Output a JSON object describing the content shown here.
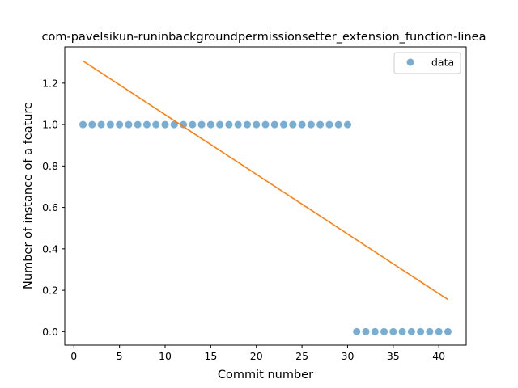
{
  "chart_data": {
    "type": "scatter",
    "title": "com-pavelsikun-runinbackgroundpermissionsetter_extension_function-linea",
    "xlabel": "Commit number",
    "ylabel": "Number of instance of a feature",
    "xlim": [
      -1,
      43
    ],
    "ylim": [
      -0.065,
      1.375
    ],
    "xticks": [
      0,
      5,
      10,
      15,
      20,
      25,
      30,
      35,
      40
    ],
    "yticks": [
      0.0,
      0.2,
      0.4,
      0.6,
      0.8,
      1.0,
      1.2
    ],
    "ytick_labels": [
      "0.0",
      "0.2",
      "0.4",
      "0.6",
      "0.8",
      "1.0",
      "1.2"
    ],
    "grid": false,
    "legend_position": "top-right",
    "series": [
      {
        "name": "data",
        "kind": "scatter",
        "color": "#1f77b4",
        "x": [
          1,
          2,
          3,
          4,
          5,
          6,
          7,
          8,
          9,
          10,
          11,
          12,
          13,
          14,
          15,
          16,
          17,
          18,
          19,
          20,
          21,
          22,
          23,
          24,
          25,
          26,
          27,
          28,
          29,
          30,
          31,
          32,
          33,
          34,
          35,
          36,
          37,
          38,
          39,
          40,
          41
        ],
        "y": [
          1,
          1,
          1,
          1,
          1,
          1,
          1,
          1,
          1,
          1,
          1,
          1,
          1,
          1,
          1,
          1,
          1,
          1,
          1,
          1,
          1,
          1,
          1,
          1,
          1,
          1,
          1,
          1,
          1,
          1,
          0,
          0,
          0,
          0,
          0,
          0,
          0,
          0,
          0,
          0,
          0
        ]
      },
      {
        "kind": "line",
        "color": "#ff7f0e",
        "x": [
          1,
          41
        ],
        "y": [
          1.307,
          0.155
        ]
      }
    ]
  }
}
